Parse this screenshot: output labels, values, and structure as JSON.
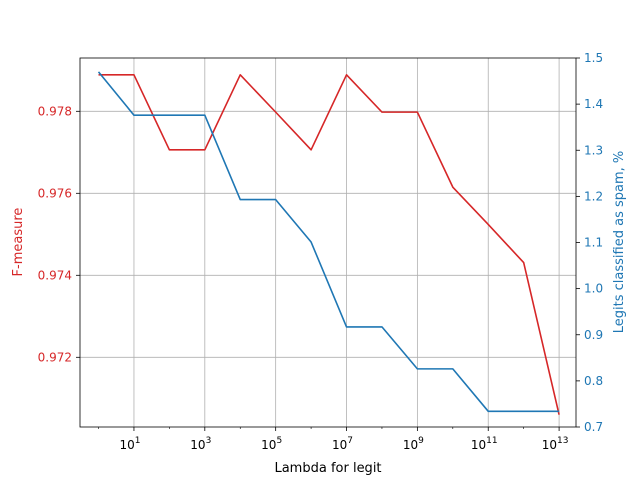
{
  "chart_data": {
    "type": "line",
    "title": "",
    "xlabel": "Lambda for legit",
    "ylabel_left": "F-measure",
    "ylabel_right": "Legits classified as spam, %",
    "x_scale": "log",
    "x": [
      1,
      10,
      100,
      1000,
      10000,
      100000,
      1000000,
      10000000,
      100000000,
      1000000000,
      10000000000,
      100000000000,
      1000000000000,
      10000000000000
    ],
    "xlim": [
      0.3,
      30000000000000
    ],
    "xticks": [
      {
        "value": 10,
        "base": "10",
        "exp": "1"
      },
      {
        "value": 1000,
        "base": "10",
        "exp": "3"
      },
      {
        "value": 100000,
        "base": "10",
        "exp": "5"
      },
      {
        "value": 10000000,
        "base": "10",
        "exp": "7"
      },
      {
        "value": 1000000000,
        "base": "10",
        "exp": "9"
      },
      {
        "value": 100000000000,
        "base": "10",
        "exp": "11"
      },
      {
        "value": 10000000000000,
        "base": "10",
        "exp": "13"
      }
    ],
    "ylim_left": [
      0.9703,
      0.9793
    ],
    "yticks_left": [
      "0.972",
      "0.974",
      "0.976",
      "0.978"
    ],
    "ylim_right": [
      0.7,
      1.5
    ],
    "yticks_right": [
      "0.7",
      "0.8",
      "0.9",
      "1.0",
      "1.1",
      "1.2",
      "1.3",
      "1.4",
      "1.5"
    ],
    "grid": true,
    "series": [
      {
        "axis": "left",
        "color": "#d62728",
        "values": [
          0.97889,
          0.97889,
          0.97706,
          0.97706,
          0.97889,
          0.97798,
          0.97706,
          0.97889,
          0.97798,
          0.97798,
          0.97615,
          0.97524,
          0.97431,
          0.9706
        ]
      },
      {
        "axis": "right",
        "color": "#1f77b4",
        "values": [
          1.47,
          1.376,
          1.376,
          1.376,
          1.193,
          1.193,
          1.101,
          0.917,
          0.917,
          0.826,
          0.826,
          0.734,
          0.734,
          0.734
        ]
      }
    ]
  },
  "colors": {
    "left_axis": "#d62728",
    "right_axis": "#1f77b4",
    "grid": "#b0b0b0"
  }
}
